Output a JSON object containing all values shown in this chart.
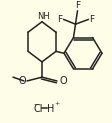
{
  "bg_color": "#FEFDE8",
  "line_color": "#222222",
  "figsize": [
    1.12,
    1.23
  ],
  "dpi": 100,
  "xlim": [
    0,
    112
  ],
  "ylim": [
    0,
    123
  ]
}
